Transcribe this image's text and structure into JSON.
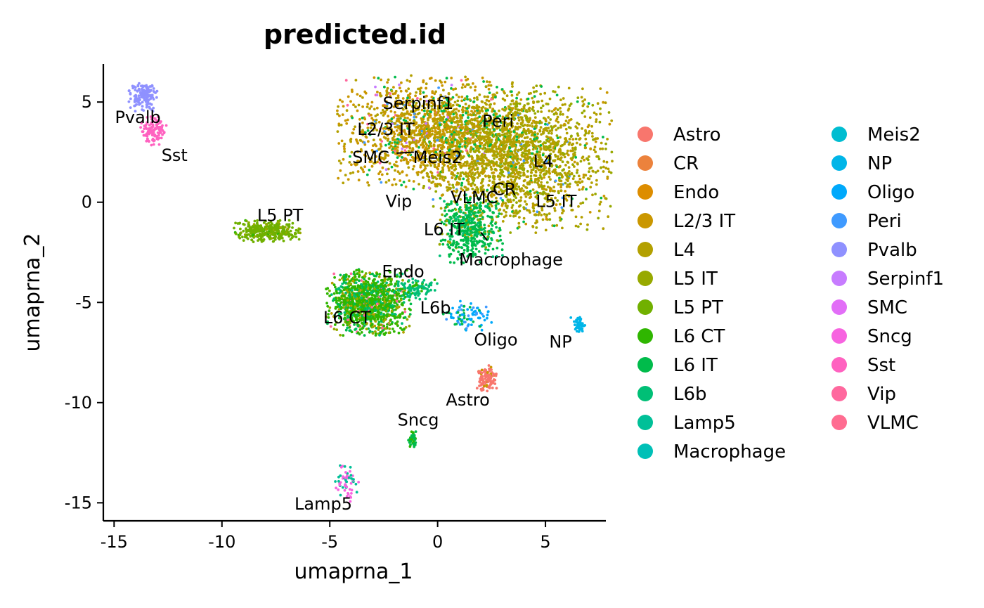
{
  "chart_data": {
    "type": "scatter",
    "title": "predicted.id",
    "xlabel": "umaprna_1",
    "ylabel": "umaprna_2",
    "xlim": [
      -15.5,
      7.8
    ],
    "ylim": [
      -15.9,
      6.9
    ],
    "x_ticks": [
      -15,
      -10,
      -5,
      0,
      5
    ],
    "x_tick_labels": [
      "-15",
      "-10",
      "-5",
      "0",
      "5"
    ],
    "y_ticks": [
      -15,
      -10,
      -5,
      0,
      5
    ],
    "y_tick_labels": [
      "-15",
      "-10",
      "-5",
      "0",
      "5"
    ],
    "legend_position": "right",
    "grid": false,
    "categories": [
      {
        "name": "Astro",
        "color": "#F8766D"
      },
      {
        "name": "CR",
        "color": "#EC823C"
      },
      {
        "name": "Endo",
        "color": "#DD8D00"
      },
      {
        "name": "L2/3 IT",
        "color": "#CA9700"
      },
      {
        "name": "L4",
        "color": "#B3A000"
      },
      {
        "name": "L5 IT",
        "color": "#97A900"
      },
      {
        "name": "L5 PT",
        "color": "#71B000"
      },
      {
        "name": "L6 CT",
        "color": "#2FB600"
      },
      {
        "name": "L6 IT",
        "color": "#00BB4B"
      },
      {
        "name": "L6b",
        "color": "#00BF76"
      },
      {
        "name": "Lamp5",
        "color": "#00C098"
      },
      {
        "name": "Macrophage",
        "color": "#00C0B7"
      },
      {
        "name": "Meis2",
        "color": "#00BDD1"
      },
      {
        "name": "NP",
        "color": "#00B5E8"
      },
      {
        "name": "Oligo",
        "color": "#00A9FB"
      },
      {
        "name": "Peri",
        "color": "#3F9AFF"
      },
      {
        "name": "Pvalb",
        "color": "#8F91FF"
      },
      {
        "name": "Serpinf1",
        "color": "#C77CFF"
      },
      {
        "name": "SMC",
        "color": "#E26EF7"
      },
      {
        "name": "Sncg",
        "color": "#F763E0"
      },
      {
        "name": "Sst",
        "color": "#FF62C0"
      },
      {
        "name": "Vip",
        "color": "#FF689E"
      },
      {
        "name": "VLMC",
        "color": "#FF6C91"
      }
    ],
    "clusters": [
      {
        "center": [
          -13.6,
          5.3
        ],
        "spread": [
          0.35,
          0.35
        ],
        "n": 140,
        "mix": {
          "Pvalb": 1
        }
      },
      {
        "center": [
          -13.2,
          3.6
        ],
        "spread": [
          0.3,
          0.35
        ],
        "n": 120,
        "mix": {
          "Sst": 1
        }
      },
      {
        "center": [
          -7.9,
          -1.45
        ],
        "spread": [
          0.7,
          0.25
        ],
        "n": 320,
        "mix": {
          "L5 PT": 0.85,
          "L5 IT": 0.1,
          "L6 CT": 0.05
        }
      },
      {
        "center": [
          -0.5,
          3.5
        ],
        "spread": [
          1.9,
          1.3
        ],
        "n": 1400,
        "mix": {
          "L2/3 IT": 0.55,
          "L4": 0.3,
          "L6 IT": 0.08,
          "Vip": 0.03,
          "Serpinf1": 0.02,
          "Peri": 0.02
        }
      },
      {
        "center": [
          3.7,
          2.2
        ],
        "spread": [
          2.0,
          1.7
        ],
        "n": 1800,
        "mix": {
          "L4": 0.6,
          "L5 IT": 0.25,
          "L2/3 IT": 0.08,
          "L6 IT": 0.05,
          "Peri": 0.02
        }
      },
      {
        "center": [
          2.4,
          3.6
        ],
        "spread": [
          1.2,
          1.0
        ],
        "n": 300,
        "mix": {
          "L4": 0.7,
          "L6 IT": 0.2,
          "L5 IT": 0.1
        }
      },
      {
        "center": [
          1.5,
          -1.3
        ],
        "spread": [
          0.7,
          0.8
        ],
        "n": 450,
        "mix": {
          "L6 IT": 0.85,
          "L6b": 0.08,
          "L5 IT": 0.07
        }
      },
      {
        "center": [
          -3.2,
          -5.0
        ],
        "spread": [
          0.9,
          0.75
        ],
        "n": 1200,
        "mix": {
          "L6 CT": 0.55,
          "L6 IT": 0.15,
          "L5 IT": 0.1,
          "L6b": 0.08,
          "Vip": 0.04,
          "L4": 0.05,
          "L5 PT": 0.03
        }
      },
      {
        "center": [
          -1.0,
          -4.3
        ],
        "spread": [
          0.5,
          0.25
        ],
        "n": 100,
        "mix": {
          "L6b": 0.8,
          "L6 CT": 0.2
        }
      },
      {
        "center": [
          1.4,
          -5.7
        ],
        "spread": [
          0.55,
          0.35
        ],
        "n": 90,
        "mix": {
          "Oligo": 0.55,
          "L6 IT": 0.3,
          "Peri": 0.15
        }
      },
      {
        "center": [
          2.3,
          -8.8
        ],
        "spread": [
          0.22,
          0.3
        ],
        "n": 110,
        "mix": {
          "Astro": 0.9,
          "L2/3 IT": 0.1
        }
      },
      {
        "center": [
          6.5,
          -6.1
        ],
        "spread": [
          0.15,
          0.2
        ],
        "n": 45,
        "mix": {
          "NP": 1
        }
      },
      {
        "center": [
          -1.2,
          -11.8
        ],
        "spread": [
          0.1,
          0.25
        ],
        "n": 40,
        "mix": {
          "L6 IT": 0.6,
          "L6 CT": 0.4
        }
      },
      {
        "center": [
          -4.2,
          -14.0
        ],
        "spread": [
          0.25,
          0.45
        ],
        "n": 60,
        "mix": {
          "Sncg": 0.6,
          "Lamp5": 0.4
        }
      }
    ],
    "annotations": [
      {
        "text": "Pvalb",
        "x": -13.9,
        "y": 4.2
      },
      {
        "text": "Sst",
        "x": -12.2,
        "y": 2.3
      },
      {
        "text": "L5 PT",
        "x": -7.3,
        "y": -0.7
      },
      {
        "text": "Serpinf1",
        "x": -0.9,
        "y": 4.9
      },
      {
        "text": "L2/3 IT",
        "x": -2.4,
        "y": 3.6
      },
      {
        "text": "Peri",
        "x": 2.8,
        "y": 4.0
      },
      {
        "text": "SMC",
        "x": -3.1,
        "y": 2.2
      },
      {
        "text": "Meis2",
        "x": 0.0,
        "y": 2.2
      },
      {
        "text": "L4",
        "x": 4.9,
        "y": 2.0
      },
      {
        "text": "Vip",
        "x": -1.8,
        "y": 0.0
      },
      {
        "text": "VLMC",
        "x": 1.7,
        "y": 0.2
      },
      {
        "text": "CR",
        "x": 3.1,
        "y": 0.6
      },
      {
        "text": "L5 IT",
        "x": 5.5,
        "y": 0.0
      },
      {
        "text": "L6 IT",
        "x": 0.3,
        "y": -1.4
      },
      {
        "text": "Macrophage",
        "x": 3.4,
        "y": -2.9
      },
      {
        "text": "Endo",
        "x": -1.6,
        "y": -3.5
      },
      {
        "text": "L6b",
        "x": -0.1,
        "y": -5.3
      },
      {
        "text": "L6 CT",
        "x": -4.2,
        "y": -5.8
      },
      {
        "text": "Oligo",
        "x": 2.7,
        "y": -6.9
      },
      {
        "text": "NP",
        "x": 5.7,
        "y": -7.0
      },
      {
        "text": "Astro",
        "x": 1.4,
        "y": -9.9
      },
      {
        "text": "Sncg",
        "x": -0.9,
        "y": -10.9
      },
      {
        "text": "Lamp5",
        "x": -5.3,
        "y": -15.1
      }
    ],
    "leader_lines": [
      {
        "from": [
          -1.9,
          2.45
        ],
        "to": [
          -1.1,
          2.5
        ]
      },
      {
        "from": [
          2.3,
          -1.9
        ],
        "to": [
          2.0,
          -1.5
        ]
      }
    ]
  }
}
